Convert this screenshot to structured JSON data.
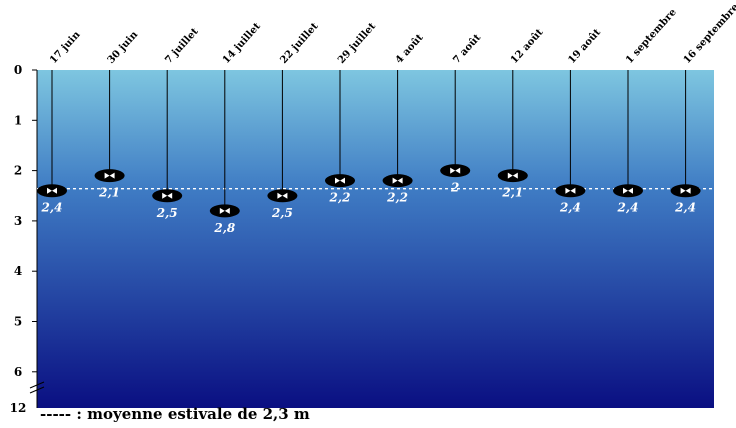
{
  "chart_data": {
    "type": "scatter",
    "categories": [
      "17 juin",
      "30 juin",
      "7 juillet",
      "14 juillet",
      "22 juillet",
      "29 juillet",
      "4 août",
      "7 août",
      "12 août",
      "19 août",
      "1 septembre",
      "16 septembre"
    ],
    "values": [
      2.4,
      2.1,
      2.5,
      2.8,
      2.5,
      2.2,
      2.2,
      2.0,
      2.1,
      2.4,
      2.4,
      2.4
    ],
    "value_labels": [
      "2,4",
      "2,1",
      "2,5",
      "2,8",
      "2,5",
      "2,2",
      "2,2",
      "2",
      "2,1",
      "2,4",
      "2,4",
      "2,4"
    ],
    "y_ticks": [
      "0",
      "1",
      "2",
      "3",
      "4",
      "5",
      "6"
    ],
    "y_break_label": "12",
    "ylim": [
      0,
      12
    ],
    "y_inverted": true,
    "mean": 2.3,
    "legend_text": "----- : moyenne estivale de  2,3 m",
    "colors": {
      "water_top": "#7ec6e0",
      "water_bottom": "#0a0f82",
      "disk": "#000000",
      "label": "#ffffff"
    }
  }
}
